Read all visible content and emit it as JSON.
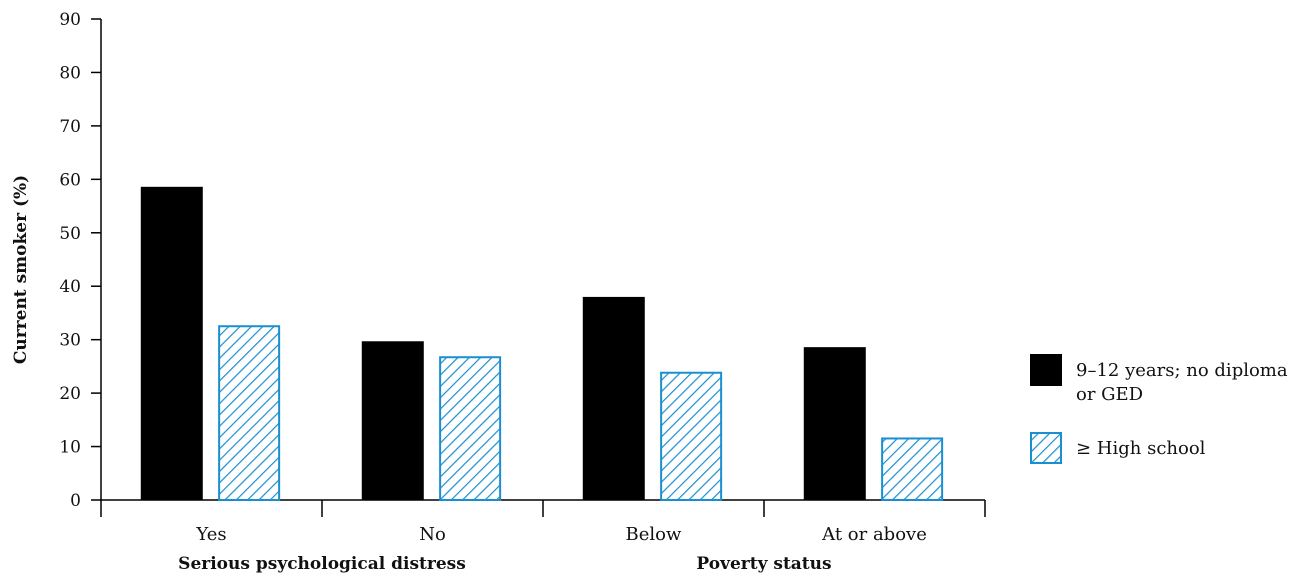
{
  "colors": {
    "series1_fill": "#000000",
    "series2_stroke": "#1a8fd0",
    "axis": "#000000"
  },
  "chart_data": {
    "type": "bar",
    "ylabel": "Current smoker (%)",
    "ylim": [
      0,
      90
    ],
    "yticks": [
      0,
      10,
      20,
      30,
      40,
      50,
      60,
      70,
      80,
      90
    ],
    "categories": [
      "Yes",
      "No",
      "Below",
      "At or above"
    ],
    "groups": [
      {
        "label": "Serious psychological distress",
        "categories": [
          "Yes",
          "No"
        ]
      },
      {
        "label": "Poverty status",
        "categories": [
          "Below",
          "At or above"
        ]
      }
    ],
    "series": [
      {
        "name": "9–12 years; no diploma or GED",
        "legend_lines": [
          "9–12 years; no diploma",
          "or GED"
        ],
        "pattern": "solid-black",
        "values": [
          58.6,
          29.7,
          38.0,
          28.6
        ]
      },
      {
        "name": "≥ High school",
        "legend_lines": [
          "≥ High school"
        ],
        "pattern": "blue-hatch",
        "values": [
          32.7,
          26.9,
          24.0,
          11.7
        ]
      }
    ],
    "grid": false,
    "legend_position": "right"
  }
}
